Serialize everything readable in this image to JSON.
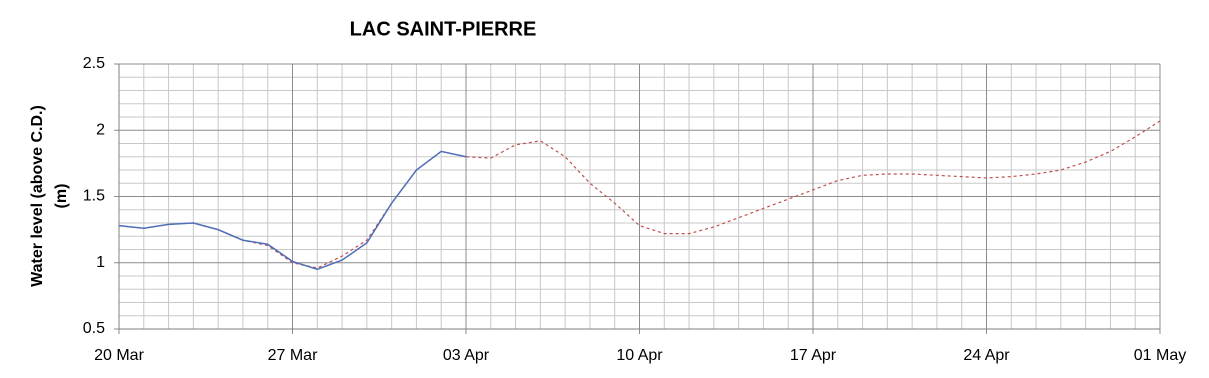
{
  "chart_data": {
    "type": "line",
    "title": "LAC SAINT-PIERRE",
    "ylabel": [
      "Water level (above C.D.)",
      "(m)"
    ],
    "x": [
      "20 Mar",
      "21 Mar",
      "22 Mar",
      "23 Mar",
      "24 Mar",
      "25 Mar",
      "26 Mar",
      "27 Mar",
      "28 Mar",
      "29 Mar",
      "30 Mar",
      "31 Mar",
      "01 Apr",
      "02 Apr",
      "03 Apr",
      "04 Apr",
      "05 Apr",
      "06 Apr",
      "07 Apr",
      "08 Apr",
      "09 Apr",
      "10 Apr",
      "11 Apr",
      "12 Apr",
      "13 Apr",
      "14 Apr",
      "15 Apr",
      "16 Apr",
      "17 Apr",
      "18 Apr",
      "19 Apr",
      "20 Apr",
      "21 Apr",
      "22 Apr",
      "23 Apr",
      "24 Apr",
      "25 Apr",
      "26 Apr",
      "27 Apr",
      "28 Apr",
      "29 Apr",
      "30 Apr",
      "01 May"
    ],
    "xlim": [
      "20 Mar",
      "01 May"
    ],
    "xticks": [
      "20 Mar",
      "27 Mar",
      "03 Apr",
      "10 Apr",
      "17 Apr",
      "24 Apr",
      "01 May"
    ],
    "ylim": [
      0.5,
      2.5
    ],
    "yticks": [
      0.5,
      1,
      1.5,
      2,
      2.5
    ],
    "yminorticks": [
      0.6,
      0.7,
      0.8,
      0.9,
      1.1,
      1.2,
      1.3,
      1.4,
      1.6,
      1.7,
      1.8,
      1.9,
      2.1,
      2.2,
      2.3,
      2.4
    ],
    "grid": true,
    "series": [
      {
        "color": "#c0504d",
        "dashed": true,
        "values": [
          1.28,
          1.26,
          1.29,
          1.3,
          1.25,
          1.17,
          1.13,
          1.0,
          0.96,
          1.05,
          1.17,
          1.45,
          1.7,
          1.84,
          1.8,
          1.79,
          1.89,
          1.92,
          1.8,
          1.6,
          1.45,
          1.28,
          1.22,
          1.22,
          1.27,
          1.34,
          1.41,
          1.48,
          1.55,
          1.62,
          1.66,
          1.67,
          1.67,
          1.66,
          1.65,
          1.64,
          1.65,
          1.67,
          1.7,
          1.76,
          1.84,
          1.95,
          2.07
        ]
      },
      {
        "color": "#4f6fb8",
        "dashed": false,
        "values": [
          1.28,
          1.26,
          1.29,
          1.3,
          1.25,
          1.17,
          1.14,
          1.01,
          0.95,
          1.02,
          1.15,
          1.45,
          1.7,
          1.84,
          1.8,
          null,
          null,
          null,
          null,
          null,
          null,
          null,
          null,
          null,
          null,
          null,
          null,
          null,
          null,
          null,
          null,
          null,
          null,
          null,
          null,
          null,
          null,
          null,
          null,
          null,
          null,
          null,
          null
        ]
      }
    ]
  }
}
